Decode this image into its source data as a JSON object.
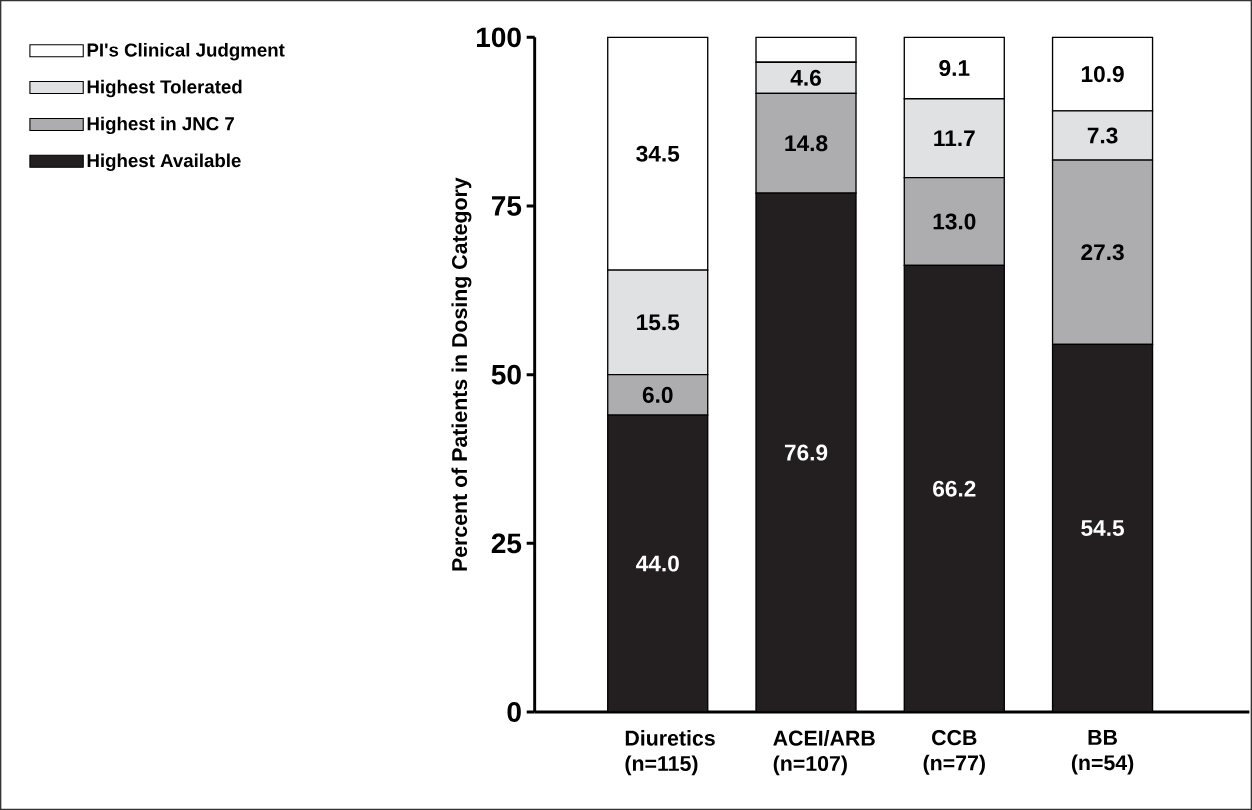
{
  "chart_data": {
    "type": "bar",
    "stacked": true,
    "ylabel": "Percent of Patients in Dosing Category",
    "categories": [
      "Diuretics (n=115)",
      "ACEI/ARB (n=107)",
      "CCB (n=77)",
      "BB (n=54)"
    ],
    "ylim": [
      0,
      100
    ],
    "yticks": [
      0,
      25,
      50,
      75,
      100
    ],
    "grid": false,
    "legend": "top left",
    "series": [
      {
        "name": "Highest Available",
        "color": "#231f20",
        "values": [
          44.0,
          76.9,
          66.2,
          54.5
        ],
        "value_labels": [
          "44.0",
          "76.9",
          "66.2",
          "54.5"
        ]
      },
      {
        "name": "Highest in JNC 7",
        "color": "#adadb0",
        "values": [
          6.0,
          14.8,
          13.0,
          27.3
        ],
        "value_labels": [
          "6.0",
          "14.8",
          "13.0",
          "27.3"
        ]
      },
      {
        "name": "Highest Tolerated",
        "color": "#e0e1e3",
        "values": [
          15.5,
          4.6,
          11.7,
          7.3
        ],
        "value_labels": [
          "15.5",
          "4.6",
          "11.7",
          "7.3"
        ]
      },
      {
        "name": "PI's Clinical Judgment",
        "color": "#ffffff",
        "values": [
          34.5,
          3.7,
          9.1,
          10.9
        ],
        "value_labels": [
          "34.5",
          null,
          "9.1",
          "10.9"
        ]
      }
    ]
  }
}
